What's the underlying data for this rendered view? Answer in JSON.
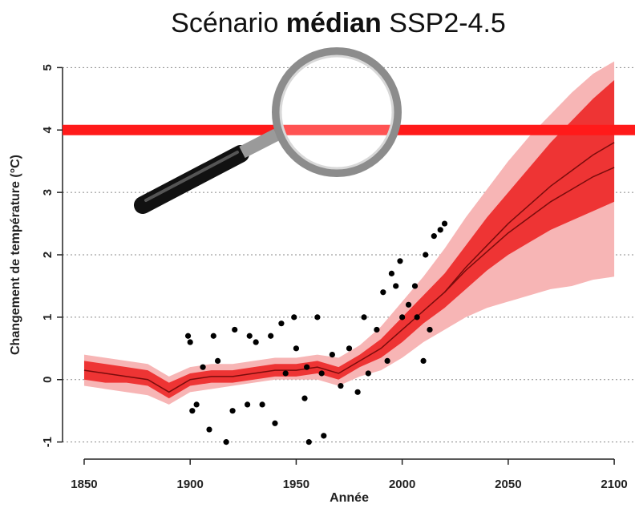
{
  "chart_data": {
    "type": "line",
    "title_parts": [
      "Scénario ",
      "médian",
      " SSP2-4.5"
    ],
    "xlabel": "Année",
    "ylabel": "Changement de température (°C)",
    "xlim": [
      1839.8,
      2109.8
    ],
    "ylim": [
      -1.3,
      5.3
    ],
    "xticks": [
      1850,
      1900,
      1950,
      2000,
      2050,
      2100
    ],
    "yticks": [
      -1,
      0,
      1,
      2,
      3,
      4,
      5
    ],
    "grid": true,
    "threshold": 4,
    "threshold_color": "#ff1a1a",
    "x": [
      1850,
      1860,
      1870,
      1880,
      1890,
      1900,
      1910,
      1920,
      1930,
      1940,
      1950,
      1960,
      1970,
      1980,
      1990,
      2000,
      2010,
      2020,
      2030,
      2040,
      2050,
      2060,
      2070,
      2080,
      2090,
      2100
    ],
    "outer_band": {
      "color": "#f7b5b5",
      "lower": [
        -0.1,
        -0.15,
        -0.2,
        -0.25,
        -0.4,
        -0.2,
        -0.15,
        -0.1,
        -0.05,
        0.0,
        0.0,
        0.0,
        -0.1,
        0.05,
        0.15,
        0.35,
        0.6,
        0.8,
        1.0,
        1.15,
        1.25,
        1.35,
        1.45,
        1.5,
        1.6,
        1.65
      ],
      "upper": [
        0.4,
        0.35,
        0.3,
        0.25,
        0.05,
        0.2,
        0.25,
        0.25,
        0.3,
        0.35,
        0.35,
        0.4,
        0.35,
        0.55,
        0.85,
        1.25,
        1.65,
        2.1,
        2.6,
        3.05,
        3.5,
        3.9,
        4.25,
        4.6,
        4.9,
        5.1
      ]
    },
    "inner_band": {
      "color": "#ee3434",
      "lower": [
        0.0,
        -0.05,
        -0.05,
        -0.1,
        -0.3,
        -0.1,
        -0.05,
        -0.05,
        0.0,
        0.05,
        0.05,
        0.1,
        0.0,
        0.2,
        0.35,
        0.6,
        0.9,
        1.15,
        1.45,
        1.75,
        2.0,
        2.2,
        2.4,
        2.55,
        2.7,
        2.85
      ],
      "upper": [
        0.3,
        0.25,
        0.2,
        0.15,
        -0.05,
        0.1,
        0.15,
        0.15,
        0.2,
        0.25,
        0.25,
        0.3,
        0.2,
        0.4,
        0.65,
        1.0,
        1.35,
        1.7,
        2.15,
        2.6,
        3.0,
        3.4,
        3.8,
        4.15,
        4.5,
        4.8
      ]
    },
    "series": [
      {
        "name": "median",
        "color": "#7a0c0c",
        "values": [
          0.15,
          0.1,
          0.05,
          0.0,
          -0.2,
          0.0,
          0.05,
          0.05,
          0.1,
          0.15,
          0.15,
          0.2,
          0.1,
          0.3,
          0.5,
          0.8,
          1.1,
          1.4,
          1.8,
          2.15,
          2.5,
          2.8,
          3.1,
          3.35,
          3.6,
          3.8
        ]
      },
      {
        "name": "lower line",
        "color": "#7a0c0c",
        "values": [
          null,
          null,
          null,
          null,
          null,
          null,
          null,
          null,
          null,
          null,
          null,
          null,
          null,
          null,
          null,
          null,
          null,
          1.4,
          1.75,
          2.05,
          2.35,
          2.6,
          2.85,
          3.05,
          3.25,
          3.4
        ]
      }
    ],
    "points": {
      "color": "#000000",
      "x": [
        1899,
        1900,
        1901,
        1903,
        1906,
        1909,
        1911,
        1913,
        1917,
        1921,
        1920,
        1927,
        1928,
        1931,
        1934,
        1938,
        1940,
        1943,
        1945,
        1949,
        1950,
        1954,
        1955,
        1956,
        1960,
        1962,
        1963,
        1967,
        1971,
        1975,
        1979,
        1982,
        1984,
        1988,
        1991,
        1993,
        1995,
        1997,
        1999,
        2000,
        2003,
        2006,
        2007,
        2010,
        2011,
        2013,
        2015,
        2018,
        2020
      ],
      "y": [
        0.7,
        0.6,
        -0.5,
        -0.4,
        0.2,
        -0.8,
        0.7,
        0.3,
        -1.0,
        0.8,
        -0.5,
        -0.4,
        0.7,
        0.6,
        -0.4,
        0.7,
        -0.7,
        0.9,
        0.1,
        1.0,
        0.5,
        -0.3,
        0.2,
        -1.0,
        1.0,
        0.1,
        -0.9,
        0.4,
        -0.1,
        0.5,
        -0.2,
        1.0,
        0.1,
        0.8,
        1.4,
        0.3,
        1.7,
        1.5,
        1.9,
        1.0,
        1.2,
        1.5,
        1.0,
        0.3,
        2.0,
        0.8,
        2.3,
        2.4,
        2.5
      ]
    }
  }
}
